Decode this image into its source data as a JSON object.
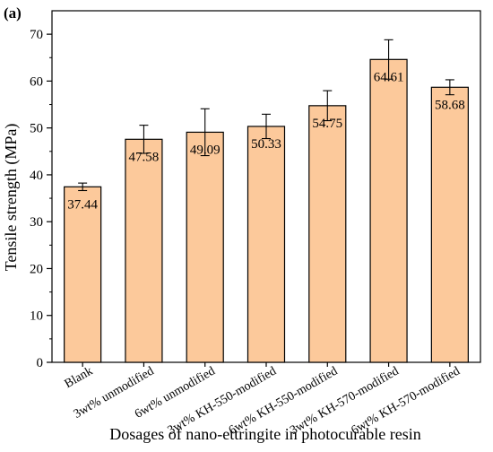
{
  "panel_label": "(a)",
  "colors": {
    "bar_fill": "#FCC99B",
    "bar_stroke": "#000000",
    "error_bar": "#000000",
    "axis": "#000000",
    "background": "#ffffff"
  },
  "chart_data": {
    "type": "bar",
    "title": "",
    "xlabel": "Dosages of nano-ettringite  in photocurable resin",
    "ylabel": "Tensile strength (MPa)",
    "ylim": [
      0,
      75
    ],
    "yticks": [
      0,
      10,
      20,
      30,
      40,
      50,
      60,
      70
    ],
    "grid": false,
    "legend": "none",
    "categories": [
      "Blank",
      "3wt% unmodified",
      "6wt% unmodified",
      "3wt% KH-550-modified",
      "6wt% KH-550-modified",
      "3wt% KH-570-modified",
      "6wt% KH-570-modified"
    ],
    "values": [
      37.44,
      47.58,
      49.09,
      50.33,
      54.75,
      64.61,
      58.68
    ],
    "value_labels": [
      "37.44",
      "47.58",
      "49.09",
      "50.33",
      "54.75",
      "64.61",
      "58.68"
    ],
    "errors": [
      0.8,
      3.0,
      5.0,
      2.6,
      3.2,
      4.2,
      1.6
    ]
  }
}
